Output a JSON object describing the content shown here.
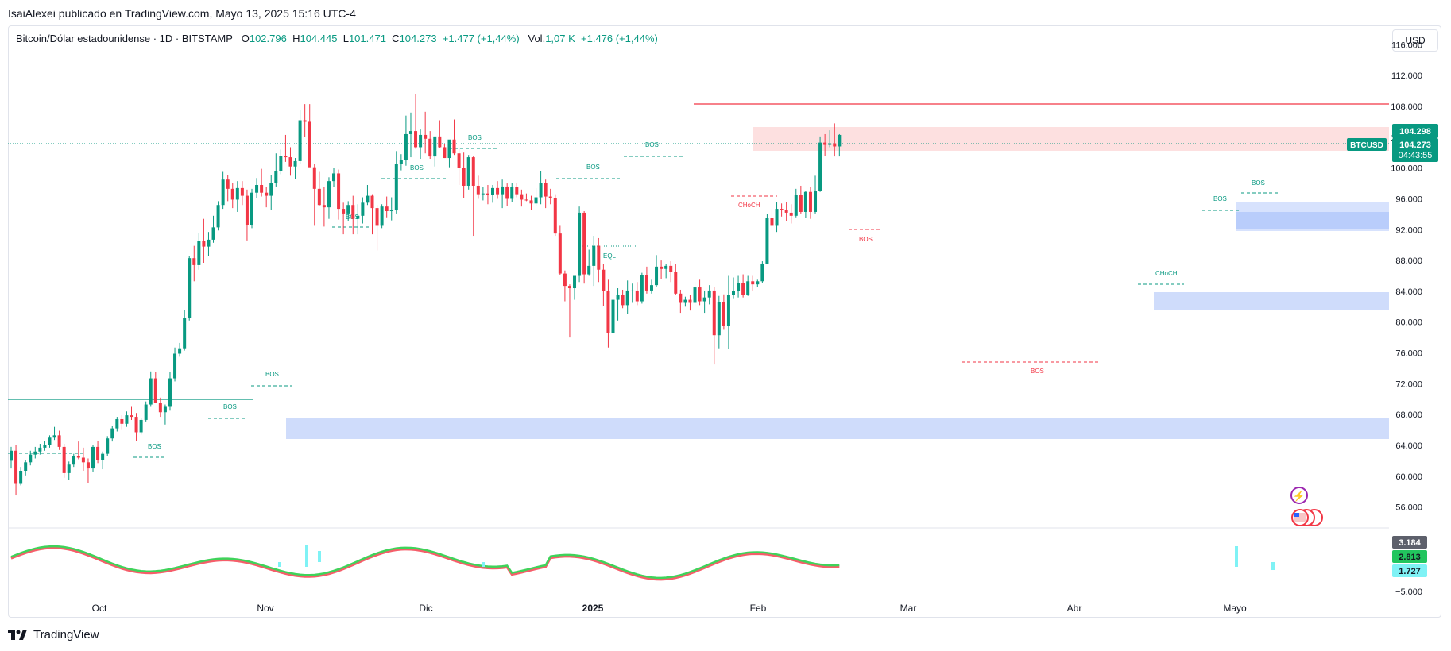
{
  "header": {
    "publisher_line": "IsaiAlexei publicado en TradingView.com, Mayo 13, 2025 15:16 UTC-4"
  },
  "legend": {
    "title": "Bitcoin/Dólar estadounidense · 1D · BITSTAMP",
    "o_label": "O",
    "o_value": "102.796",
    "h_label": "H",
    "h_value": "104.445",
    "l_label": "L",
    "l_value": "101.471",
    "c_label": "C",
    "c_value": "104.273",
    "change": "+1.477 (+1,44%)",
    "vol_label": "Vol.",
    "vol_value": "1,07 K",
    "vol_change": "+1.476 (+1,44%)"
  },
  "currency_button": "USD",
  "footer": {
    "brand": "TradingView"
  },
  "colors": {
    "up": "#089981",
    "down": "#f23645",
    "zone_blue": "#c9d8fd",
    "zone_red": "#fcdcdc",
    "accent": "#2962ff"
  },
  "chart_data": {
    "type": "candlestick",
    "symbol": "BTCUSD",
    "y_range": [
      54000,
      118000
    ],
    "y_ticks": [
      "56.000",
      "60.000",
      "64.000",
      "68.000",
      "72.000",
      "76.000",
      "80.000",
      "84.000",
      "88.000",
      "92.000",
      "96.000",
      "100.000",
      "104.000",
      "108.000",
      "112.000",
      "116.000"
    ],
    "x_labels": [
      "Oct",
      "Nov",
      "Dic",
      "2025",
      "Feb",
      "Mar",
      "Abr",
      "Mayo"
    ],
    "price_labels": {
      "high_box": "104.298",
      "last_price": "104.273",
      "countdown": "04:43:55",
      "symbol_tag": "BTCUSD"
    },
    "oscillator_labels": [
      "3.184",
      "2.813",
      "1.727"
    ],
    "oscillator_axis": "−5.000",
    "candles": [
      [
        62000,
        63800,
        61000,
        63300
      ],
      [
        63300,
        64000,
        57500,
        59000
      ],
      [
        59000,
        61200,
        58800,
        60700
      ],
      [
        60700,
        62100,
        60100,
        61800
      ],
      [
        61800,
        63300,
        61400,
        62800
      ],
      [
        62800,
        63800,
        62300,
        63200
      ],
      [
        63200,
        64200,
        62800,
        63700
      ],
      [
        63700,
        64600,
        63300,
        64100
      ],
      [
        64100,
        65300,
        63700,
        65000
      ],
      [
        65000,
        66400,
        64700,
        65300
      ],
      [
        65300,
        65900,
        63400,
        63800
      ],
      [
        63800,
        64200,
        59800,
        60400
      ],
      [
        60400,
        61900,
        59500,
        61500
      ],
      [
        61500,
        62900,
        61200,
        62600
      ],
      [
        62600,
        64500,
        62200,
        62400
      ],
      [
        62400,
        63700,
        60700,
        61800
      ],
      [
        61800,
        62300,
        59100,
        61000
      ],
      [
        61000,
        64100,
        60600,
        63800
      ],
      [
        63800,
        64600,
        61700,
        62100
      ],
      [
        62100,
        63200,
        60900,
        62900
      ],
      [
        62900,
        65200,
        62600,
        64900
      ],
      [
        64900,
        66500,
        64500,
        66200
      ],
      [
        66200,
        67700,
        65800,
        67400
      ],
      [
        67400,
        67900,
        66100,
        66800
      ],
      [
        66800,
        68400,
        66400,
        67900
      ],
      [
        67900,
        69000,
        67300,
        67700
      ],
      [
        67700,
        68200,
        64600,
        65700
      ],
      [
        65700,
        67600,
        65400,
        67300
      ],
      [
        67300,
        69700,
        67100,
        69300
      ],
      [
        69300,
        73600,
        69000,
        72700
      ],
      [
        72700,
        73500,
        69600,
        69500
      ],
      [
        69500,
        70200,
        67700,
        68300
      ],
      [
        68300,
        69300,
        66700,
        69000
      ],
      [
        69000,
        73500,
        68500,
        72700
      ],
      [
        72700,
        76700,
        72300,
        75900
      ],
      [
        75900,
        77300,
        75500,
        76600
      ],
      [
        76600,
        81600,
        76300,
        80500
      ],
      [
        80500,
        88600,
        80200,
        88300
      ],
      [
        88300,
        89900,
        85300,
        87400
      ],
      [
        87400,
        91600,
        86800,
        90500
      ],
      [
        90500,
        93400,
        87700,
        89800
      ],
      [
        89800,
        91700,
        88600,
        90700
      ],
      [
        90700,
        93800,
        90300,
        92300
      ],
      [
        92300,
        95700,
        91900,
        95200
      ],
      [
        95200,
        99500,
        94700,
        98500
      ],
      [
        98500,
        99100,
        95700,
        97300
      ],
      [
        97300,
        98100,
        94800,
        95900
      ],
      [
        95900,
        98300,
        94300,
        97400
      ],
      [
        97400,
        98300,
        95200,
        96400
      ],
      [
        96400,
        97200,
        90600,
        92600
      ],
      [
        92600,
        97300,
        92200,
        96800
      ],
      [
        96800,
        98700,
        96100,
        97800
      ],
      [
        97800,
        99900,
        96300,
        96800
      ],
      [
        96800,
        97500,
        94900,
        96400
      ],
      [
        96400,
        99100,
        94600,
        98100
      ],
      [
        98100,
        101900,
        97600,
        99600
      ],
      [
        99600,
        102400,
        99200,
        101600
      ],
      [
        101600,
        104300,
        100800,
        101400
      ],
      [
        101400,
        102700,
        99000,
        100200
      ],
      [
        100200,
        101300,
        98600,
        100900
      ],
      [
        100900,
        107500,
        100500,
        106200
      ],
      [
        106200,
        108300,
        104000,
        106000
      ],
      [
        106000,
        108300,
        100300,
        100100
      ],
      [
        100100,
        100500,
        92500,
        97300
      ],
      [
        97300,
        99500,
        95100,
        95200
      ],
      [
        95200,
        97500,
        92400,
        94900
      ],
      [
        94900,
        98800,
        93400,
        98300
      ],
      [
        98300,
        100000,
        97500,
        99300
      ],
      [
        99300,
        99800,
        93300,
        94700
      ],
      [
        94700,
        95500,
        91400,
        94100
      ],
      [
        94100,
        95700,
        93100,
        95200
      ],
      [
        95200,
        96400,
        91400,
        93400
      ],
      [
        93400,
        95300,
        91400,
        93800
      ],
      [
        93800,
        96200,
        92800,
        95500
      ],
      [
        95500,
        97800,
        95200,
        96400
      ],
      [
        96400,
        96600,
        91400,
        94800
      ],
      [
        94800,
        95200,
        89300,
        92500
      ],
      [
        92500,
        95300,
        92200,
        95000
      ],
      [
        95000,
        96300,
        93600,
        94400
      ],
      [
        94400,
        96200,
        93200,
        94500
      ],
      [
        94500,
        102200,
        94100,
        100500
      ],
      [
        100500,
        101800,
        99700,
        101000
      ],
      [
        101000,
        106800,
        100300,
        104400
      ],
      [
        104400,
        107200,
        101400,
        104800
      ],
      [
        104800,
        109600,
        102500,
        102700
      ],
      [
        102700,
        105000,
        101200,
        104300
      ],
      [
        104300,
        107300,
        101900,
        103800
      ],
      [
        103800,
        104800,
        101200,
        101500
      ],
      [
        101500,
        104000,
        100200,
        104100
      ],
      [
        104100,
        106200,
        102600,
        102700
      ],
      [
        102700,
        103100,
        101300,
        101300
      ],
      [
        101300,
        103500,
        100100,
        103700
      ],
      [
        103700,
        106300,
        101700,
        101900
      ],
      [
        101900,
        102600,
        97800,
        100000
      ],
      [
        100000,
        102000,
        96100,
        97700
      ],
      [
        97700,
        101700,
        97200,
        101400
      ],
      [
        101400,
        101600,
        91200,
        97700
      ],
      [
        97700,
        99000,
        96000,
        96600
      ],
      [
        96600,
        97500,
        95800,
        96700
      ],
      [
        96700,
        97800,
        95300,
        96500
      ],
      [
        96500,
        97800,
        95500,
        97400
      ],
      [
        97400,
        98300,
        96000,
        96600
      ],
      [
        96600,
        98500,
        94800,
        97600
      ],
      [
        97600,
        98000,
        95100,
        96000
      ],
      [
        96000,
        98100,
        95600,
        97500
      ],
      [
        97500,
        98100,
        96200,
        96600
      ],
      [
        96600,
        97200,
        95000,
        95900
      ],
      [
        95900,
        96700,
        95700,
        95800
      ],
      [
        95800,
        96400,
        94600,
        95400
      ],
      [
        95400,
        97400,
        95100,
        96200
      ],
      [
        96200,
        99600,
        95300,
        98100
      ],
      [
        98100,
        98500,
        94800,
        96300
      ],
      [
        96300,
        97300,
        95300,
        96100
      ],
      [
        96100,
        96600,
        91200,
        91500
      ],
      [
        91500,
        92500,
        86100,
        86300
      ],
      [
        86300,
        86700,
        82700,
        84700
      ],
      [
        84700,
        84900,
        78000,
        84400
      ],
      [
        84400,
        85800,
        82900,
        86000
      ],
      [
        86000,
        95000,
        85200,
        94200
      ],
      [
        94200,
        94400,
        85000,
        86200
      ],
      [
        86200,
        89400,
        86000,
        87300
      ],
      [
        87300,
        91200,
        84700,
        89900
      ],
      [
        89900,
        90900,
        85200,
        86800
      ],
      [
        86800,
        87500,
        82100,
        84000
      ],
      [
        84000,
        85500,
        76700,
        78600
      ],
      [
        78600,
        83200,
        78300,
        82900
      ],
      [
        82900,
        84400,
        80200,
        83500
      ],
      [
        83500,
        84200,
        81800,
        82200
      ],
      [
        82200,
        85400,
        81000,
        84100
      ],
      [
        84100,
        85000,
        82500,
        84100
      ],
      [
        84100,
        85200,
        82200,
        82700
      ],
      [
        82700,
        86400,
        82400,
        86100
      ],
      [
        86100,
        87200,
        83700,
        84100
      ],
      [
        84100,
        85500,
        83700,
        84800
      ],
      [
        84800,
        88700,
        84600,
        87200
      ],
      [
        87200,
        88000,
        85600,
        86900
      ],
      [
        86900,
        87500,
        85700,
        87300
      ],
      [
        87300,
        87900,
        85200,
        86500
      ],
      [
        86500,
        87500,
        83500,
        83700
      ],
      [
        83700,
        84200,
        81200,
        82500
      ],
      [
        82500,
        83300,
        82000,
        82900
      ],
      [
        82900,
        83500,
        81500,
        82500
      ],
      [
        82500,
        85200,
        82000,
        84500
      ],
      [
        84500,
        85500,
        82200,
        82700
      ],
      [
        82700,
        84100,
        81200,
        83200
      ],
      [
        83200,
        84800,
        82300,
        84100
      ],
      [
        84100,
        84600,
        74500,
        78300
      ],
      [
        78300,
        83400,
        76600,
        82600
      ],
      [
        82600,
        83600,
        79000,
        79500
      ],
      [
        79500,
        86000,
        76500,
        83500
      ],
      [
        83500,
        85800,
        83100,
        84000
      ],
      [
        84000,
        86000,
        83200,
        85100
      ],
      [
        85100,
        86200,
        83200,
        83500
      ],
      [
        83500,
        86000,
        83400,
        85300
      ],
      [
        85300,
        86000,
        84100,
        84900
      ],
      [
        84900,
        85500,
        84600,
        85300
      ],
      [
        85300,
        87900,
        85100,
        87600
      ],
      [
        87600,
        94000,
        87500,
        93500
      ],
      [
        93500,
        94700,
        91900,
        92500
      ],
      [
        92500,
        95600,
        91700,
        94700
      ],
      [
        94700,
        95400,
        93700,
        94600
      ],
      [
        94600,
        95600,
        93100,
        94200
      ],
      [
        94200,
        95300,
        92800,
        93800
      ],
      [
        93800,
        97300,
        93600,
        96500
      ],
      [
        96500,
        97700,
        94100,
        94300
      ],
      [
        94300,
        97000,
        93500,
        96900
      ],
      [
        96900,
        97500,
        93400,
        94300
      ],
      [
        94300,
        99000,
        94100,
        97000
      ],
      [
        97000,
        104100,
        96900,
        103300
      ],
      [
        103300,
        104400,
        101600,
        103000
      ],
      [
        103000,
        104900,
        102700,
        103200
      ],
      [
        103200,
        105800,
        101500,
        102800
      ],
      [
        102800,
        104400,
        101500,
        104300
      ]
    ]
  }
}
